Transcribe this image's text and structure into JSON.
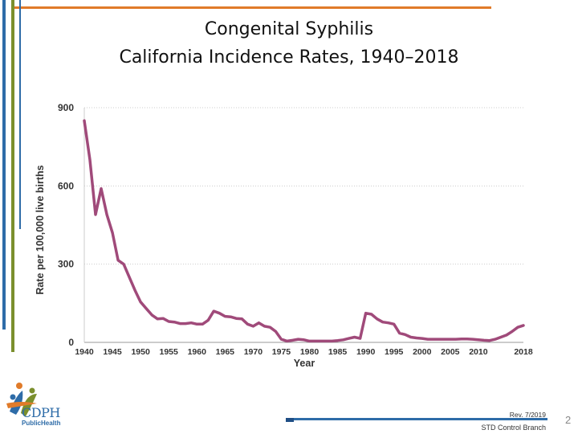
{
  "header": {
    "title_line1": "Congenital Syphilis",
    "title_line2": "California Incidence Rates, 1940–2018"
  },
  "colors": {
    "line": "#a04a7a",
    "accent_orange": "#e07b2a",
    "accent_blue": "#2e6ca8",
    "accent_green": "#7b8f2d"
  },
  "footer": {
    "revision": "Rev. 7/2019",
    "branch": "STD Control Branch",
    "page_number": "2"
  },
  "logo": {
    "name": "CDPH",
    "sub": "PublicHealth",
    "icon": "cdph-people-logo-icon"
  },
  "chart_data": {
    "type": "line",
    "title": "",
    "xlabel": "Year",
    "ylabel": "Rate per 100,000 live births",
    "xlim": [
      1940,
      2018
    ],
    "ylim": [
      0,
      900
    ],
    "yticks": [
      0,
      300,
      600,
      900
    ],
    "xtick_labels": [
      "1940",
      "1945",
      "1950",
      "1955",
      "1960",
      "1965",
      "1970",
      "1975",
      "1980",
      "1985",
      "1990",
      "1995",
      "2000",
      "2005",
      "2010",
      "2018"
    ],
    "grid": true,
    "series": [
      {
        "x": [
          1940,
          1941,
          1942,
          1943,
          1944,
          1945,
          1946,
          1947,
          1948,
          1949,
          1950,
          1951,
          1952,
          1953,
          1954,
          1955,
          1956,
          1957,
          1958,
          1959,
          1960,
          1961,
          1962,
          1963,
          1964,
          1965,
          1966,
          1967,
          1968,
          1969,
          1970,
          1971,
          1972,
          1973,
          1974,
          1975,
          1976,
          1977,
          1978,
          1979,
          1980,
          1981,
          1982,
          1983,
          1984,
          1985,
          1986,
          1987,
          1988,
          1989,
          1990,
          1991,
          1992,
          1993,
          1994,
          1995,
          1996,
          1997,
          1998,
          1999,
          2000,
          2001,
          2002,
          2003,
          2004,
          2005,
          2006,
          2007,
          2008,
          2009,
          2010,
          2011,
          2012,
          2013,
          2014,
          2015,
          2016,
          2017,
          2018
        ],
        "values": [
          850,
          700,
          490,
          590,
          490,
          420,
          315,
          300,
          250,
          200,
          155,
          130,
          105,
          90,
          92,
          80,
          78,
          72,
          72,
          75,
          70,
          70,
          85,
          120,
          112,
          100,
          98,
          92,
          90,
          70,
          62,
          75,
          62,
          58,
          42,
          12,
          5,
          8,
          12,
          10,
          5,
          5,
          5,
          5,
          5,
          7,
          10,
          15,
          20,
          15,
          112,
          108,
          90,
          78,
          75,
          70,
          35,
          30,
          20,
          17,
          15,
          12,
          12,
          12,
          12,
          12,
          12,
          13,
          13,
          12,
          10,
          8,
          7,
          12,
          20,
          28,
          42,
          58,
          65
        ]
      }
    ]
  }
}
